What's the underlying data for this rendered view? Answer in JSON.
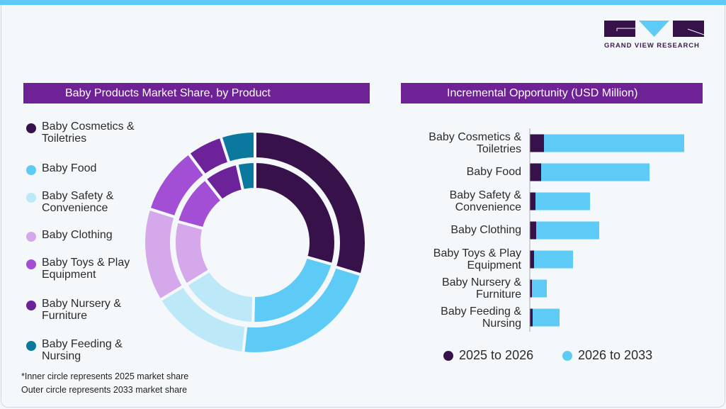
{
  "brand": {
    "name": "GRAND VIEW RESEARCH",
    "logo_letters": "GVR",
    "colors": {
      "dark": "#37114a",
      "light_blue": "#5ecbf6"
    }
  },
  "left_panel": {
    "title": "Baby Products Market Share, by Product",
    "notes": [
      "*Inner circle represents 2025 market share",
      "Outer circle represents 2033 market share"
    ]
  },
  "right_panel": {
    "title": "Incremental Opportunity (USD Million)"
  },
  "chart_data": [
    {
      "type": "pie",
      "subtype": "double-donut",
      "title": "Baby Products Market Share, by Product",
      "categories": [
        "Baby Cosmetics & Toiletries",
        "Baby Food",
        "Baby Safety & Convenience",
        "Baby Clothing",
        "Baby Toys & Play Equipment",
        "Baby Nursery & Furniture",
        "Baby Feeding & Nursing"
      ],
      "colors": [
        "#37114a",
        "#5ecbf6",
        "#bde8f8",
        "#d4a8ea",
        "#a24fd6",
        "#6c2299",
        "#0b789d"
      ],
      "series": [
        {
          "name": "2025",
          "ring": "inner",
          "values": [
            29.4,
            21.0,
            15.8,
            13.0,
            10.2,
            7.0,
            3.6
          ]
        },
        {
          "name": "2033",
          "ring": "outer",
          "values": [
            29.7,
            22.0,
            14.6,
            13.6,
            9.9,
            5.2,
            5.0
          ]
        }
      ],
      "legend": "left"
    },
    {
      "type": "bar",
      "orientation": "horizontal",
      "stacked": true,
      "title": "Incremental Opportunity (USD Million)",
      "categories": [
        "Baby Cosmetics & Toiletries",
        "Baby Food",
        "Baby Safety & Convenience",
        "Baby Clothing",
        "Baby Toys & Play Equipment",
        "Baby Nursery & Furniture",
        "Baby Feeding & Nursing"
      ],
      "series": [
        {
          "name": "2025 to 2026",
          "color": "#37114a",
          "values": [
            20,
            16,
            8,
            9,
            6,
            3,
            4
          ]
        },
        {
          "name": "2026 to 2033",
          "color": "#5ecbf6",
          "values": [
            198,
            153,
            77,
            89,
            55,
            21,
            38
          ]
        }
      ],
      "legend": "bottom",
      "grid": false
    }
  ]
}
